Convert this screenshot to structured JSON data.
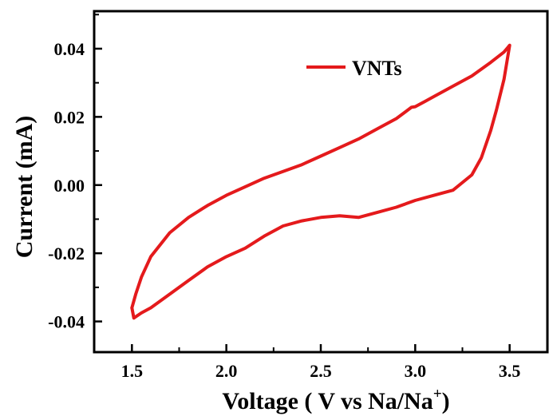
{
  "chart_data": {
    "type": "line",
    "xlabel": "Voltage ( V vs Na/Na",
    "xlabel_sup": "+",
    "xlabel_close": ")",
    "ylabel": "Current (mA)",
    "xlim": [
      1.3,
      3.7
    ],
    "ylim": [
      -0.049,
      0.051
    ],
    "xticks": [
      1.5,
      2.0,
      2.5,
      3.0,
      3.5
    ],
    "xtick_labels": [
      "1.5",
      "2.0",
      "2.5",
      "3.0",
      "3.5"
    ],
    "yticks": [
      -0.04,
      -0.02,
      0.0,
      0.02,
      0.04
    ],
    "ytick_labels": [
      "-0.04",
      "-0.02",
      "0.00",
      "0.02",
      "0.04"
    ],
    "legend_position": "top-right",
    "series": [
      {
        "name": "VNTs",
        "color": "#e41a1c",
        "x": [
          1.5,
          1.52,
          1.55,
          1.6,
          1.7,
          1.8,
          1.9,
          2.0,
          2.1,
          2.2,
          2.3,
          2.4,
          2.5,
          2.6,
          2.7,
          2.8,
          2.9,
          2.98,
          3.0,
          3.05,
          3.1,
          3.2,
          3.3,
          3.4,
          3.47,
          3.5,
          3.47,
          3.43,
          3.4,
          3.35,
          3.3,
          3.2,
          3.1,
          3.0,
          2.9,
          2.8,
          2.7,
          2.6,
          2.5,
          2.4,
          2.3,
          2.2,
          2.1,
          2.0,
          1.9,
          1.8,
          1.7,
          1.6,
          1.55,
          1.51,
          1.5
        ],
        "y": [
          -0.036,
          -0.032,
          -0.027,
          -0.021,
          -0.014,
          -0.0095,
          -0.006,
          -0.003,
          -0.0005,
          0.002,
          0.004,
          0.006,
          0.0085,
          0.011,
          0.0135,
          0.0165,
          0.0195,
          0.0228,
          0.023,
          0.0245,
          0.026,
          0.029,
          0.032,
          0.036,
          0.039,
          0.041,
          0.031,
          0.022,
          0.016,
          0.008,
          0.003,
          -0.0015,
          -0.003,
          -0.0045,
          -0.0065,
          -0.008,
          -0.0095,
          -0.009,
          -0.0095,
          -0.0105,
          -0.012,
          -0.015,
          -0.0185,
          -0.021,
          -0.024,
          -0.028,
          -0.032,
          -0.036,
          -0.0375,
          -0.039,
          -0.036
        ]
      }
    ]
  }
}
